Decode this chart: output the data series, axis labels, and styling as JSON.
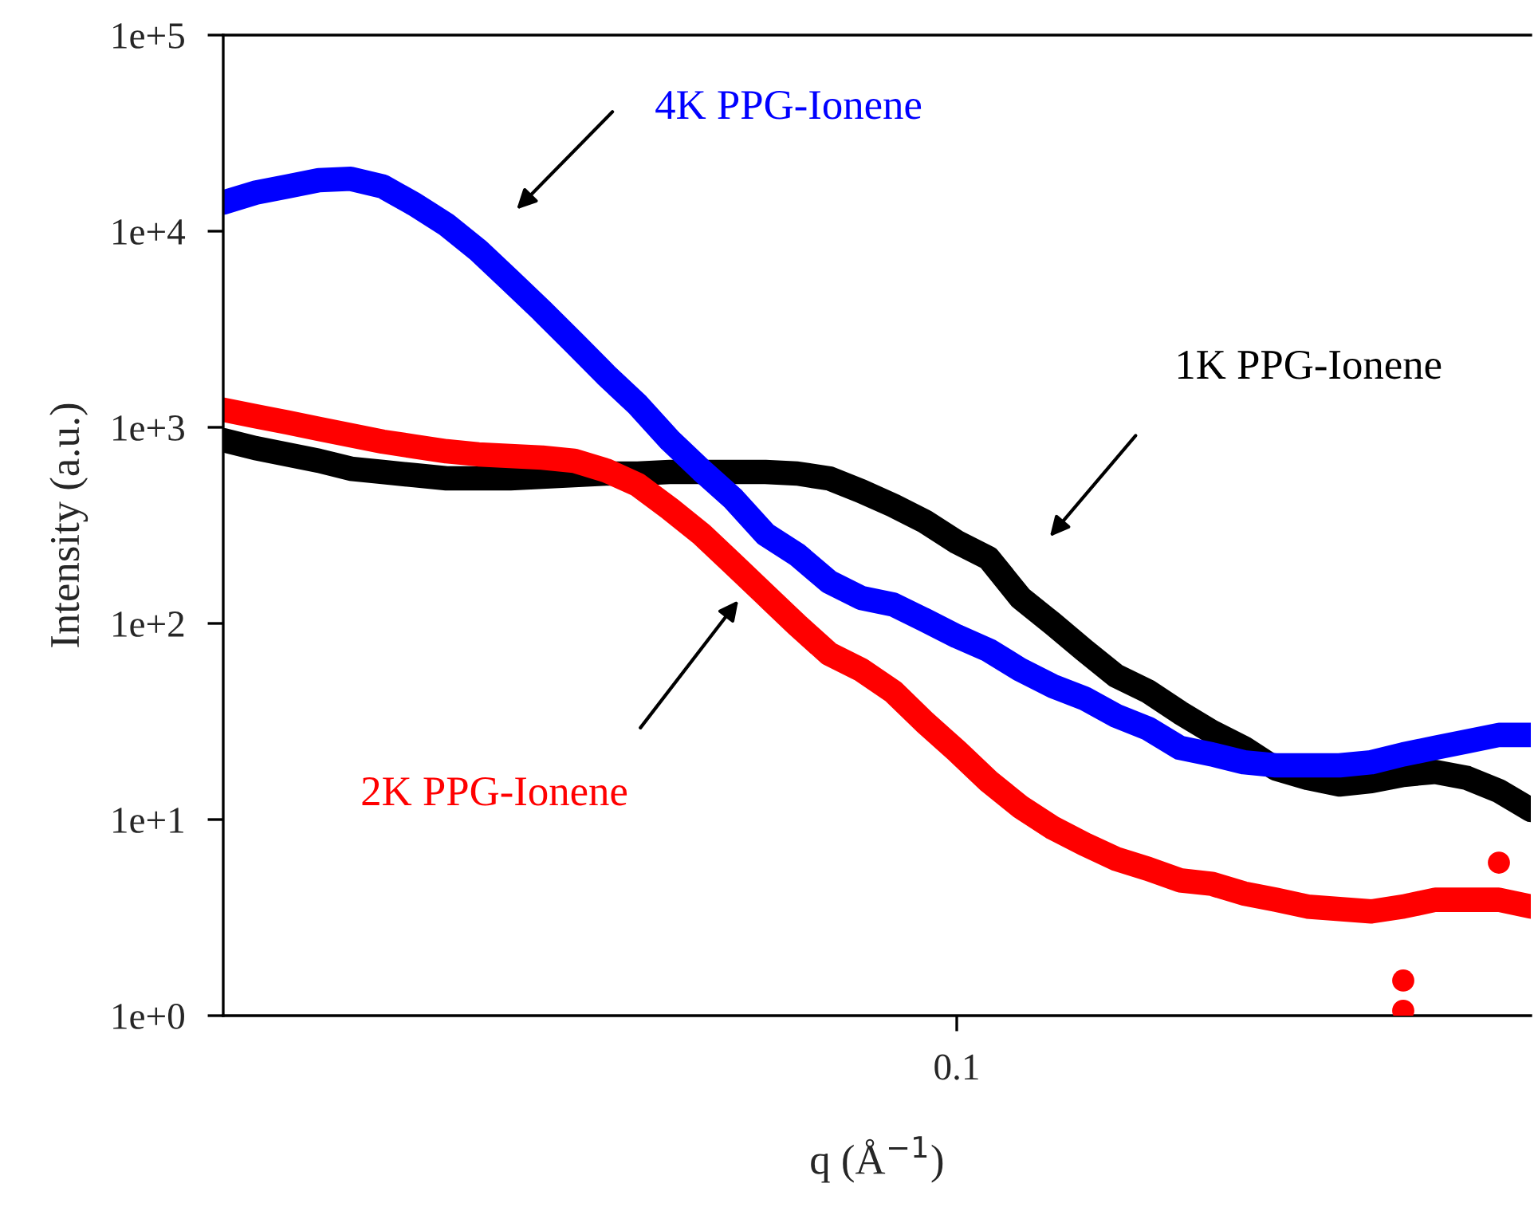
{
  "chart_data": {
    "type": "line",
    "xlabel": "q (Å$^{−1}$)",
    "ylabel": "Intensity (a.u.)",
    "log": "y",
    "grid": false,
    "legend": false,
    "marker": "none",
    "line_style": "solid",
    "categories": [
      null,
      null,
      null,
      null,
      null,
      null,
      null,
      null,
      null,
      null,
      null,
      null,
      null,
      null,
      null,
      null,
      null,
      null,
      null,
      null,
      null,
      null,
      null,
      "0.1",
      null,
      null,
      null,
      null,
      null,
      null,
      null,
      null,
      null,
      null,
      null,
      null,
      null,
      null,
      null,
      null,
      null,
      null
    ],
    "ylim": [
      1,
      100000
    ],
    "yticks": [
      {
        "value": 1,
        "label": "1e+0"
      },
      {
        "value": 10,
        "label": "1e+1"
      },
      {
        "value": 100,
        "label": "1e+2"
      },
      {
        "value": 1000,
        "label": "1e+3"
      },
      {
        "value": 10000,
        "label": "1e+4"
      },
      {
        "value": 100000,
        "label": "1e+5"
      }
    ],
    "series": [
      {
        "name": "1K PPG-Ionene",
        "color": "#000000",
        "values": [
          861,
          784,
          728,
          675,
          615,
          592,
          570,
          549,
          549,
          549,
          560,
          570,
          581,
          581,
          592,
          592,
          592,
          592,
          581,
          549,
          473,
          400,
          331,
          260,
          215,
          135,
          100,
          73,
          54,
          45,
          35.1,
          28.0,
          23.2,
          18.2,
          16.3,
          15.1,
          15.7,
          16.9,
          17.5,
          16.3,
          14.0,
          11.2
        ]
      },
      {
        "name": "2K PPG-Ionene",
        "color": "#ff0000",
        "values": [
          1230,
          1140,
          1060,
          982,
          910,
          845,
          798,
          755,
          728,
          714,
          701,
          675,
          603,
          509,
          385,
          285,
          200,
          140,
          98,
          70,
          58,
          45,
          31.3,
          22.4,
          15.7,
          11.6,
          9.1,
          7.5,
          6.3,
          5.6,
          4.9,
          4.7,
          4.2,
          3.9,
          3.6,
          3.5,
          3.4,
          3.6,
          3.9,
          3.9,
          3.9,
          3.6
        ]
      },
      {
        "type": "scatter",
        "marker": "circle",
        "color": "#ff0000",
        "values": [
          null,
          null,
          null,
          null,
          null,
          null,
          null,
          null,
          null,
          null,
          null,
          null,
          null,
          null,
          null,
          null,
          null,
          null,
          null,
          null,
          null,
          null,
          null,
          null,
          null,
          null,
          null,
          null,
          null,
          null,
          null,
          null,
          null,
          null,
          null,
          null,
          null,
          1.51,
          null,
          null,
          6.03,
          null
        ]
      },
      {
        "type": "scatter",
        "marker": "circle",
        "color": "#ff0000",
        "values": [
          null,
          null,
          null,
          null,
          null,
          null,
          null,
          null,
          null,
          null,
          null,
          null,
          null,
          null,
          null,
          null,
          null,
          null,
          null,
          null,
          null,
          null,
          null,
          null,
          null,
          null,
          null,
          null,
          null,
          null,
          null,
          null,
          null,
          null,
          null,
          null,
          null,
          1.06,
          null,
          null,
          null,
          null
        ]
      },
      {
        "name": "4K PPG-Ionene",
        "color": "#0000ff",
        "values": [
          14000,
          15700,
          16900,
          18200,
          18500,
          16900,
          13700,
          10800,
          7980,
          5600,
          3920,
          2700,
          1850,
          1300,
          861,
          603,
          431,
          285,
          224,
          163,
          135,
          125,
          104,
          86,
          73,
          58,
          48,
          41.5,
          33.8,
          29.1,
          23.2,
          21.5,
          19.6,
          18.9,
          18.9,
          18.9,
          19.6,
          21.5,
          23.2,
          25.0,
          27.0,
          27.0
        ]
      }
    ]
  }
}
